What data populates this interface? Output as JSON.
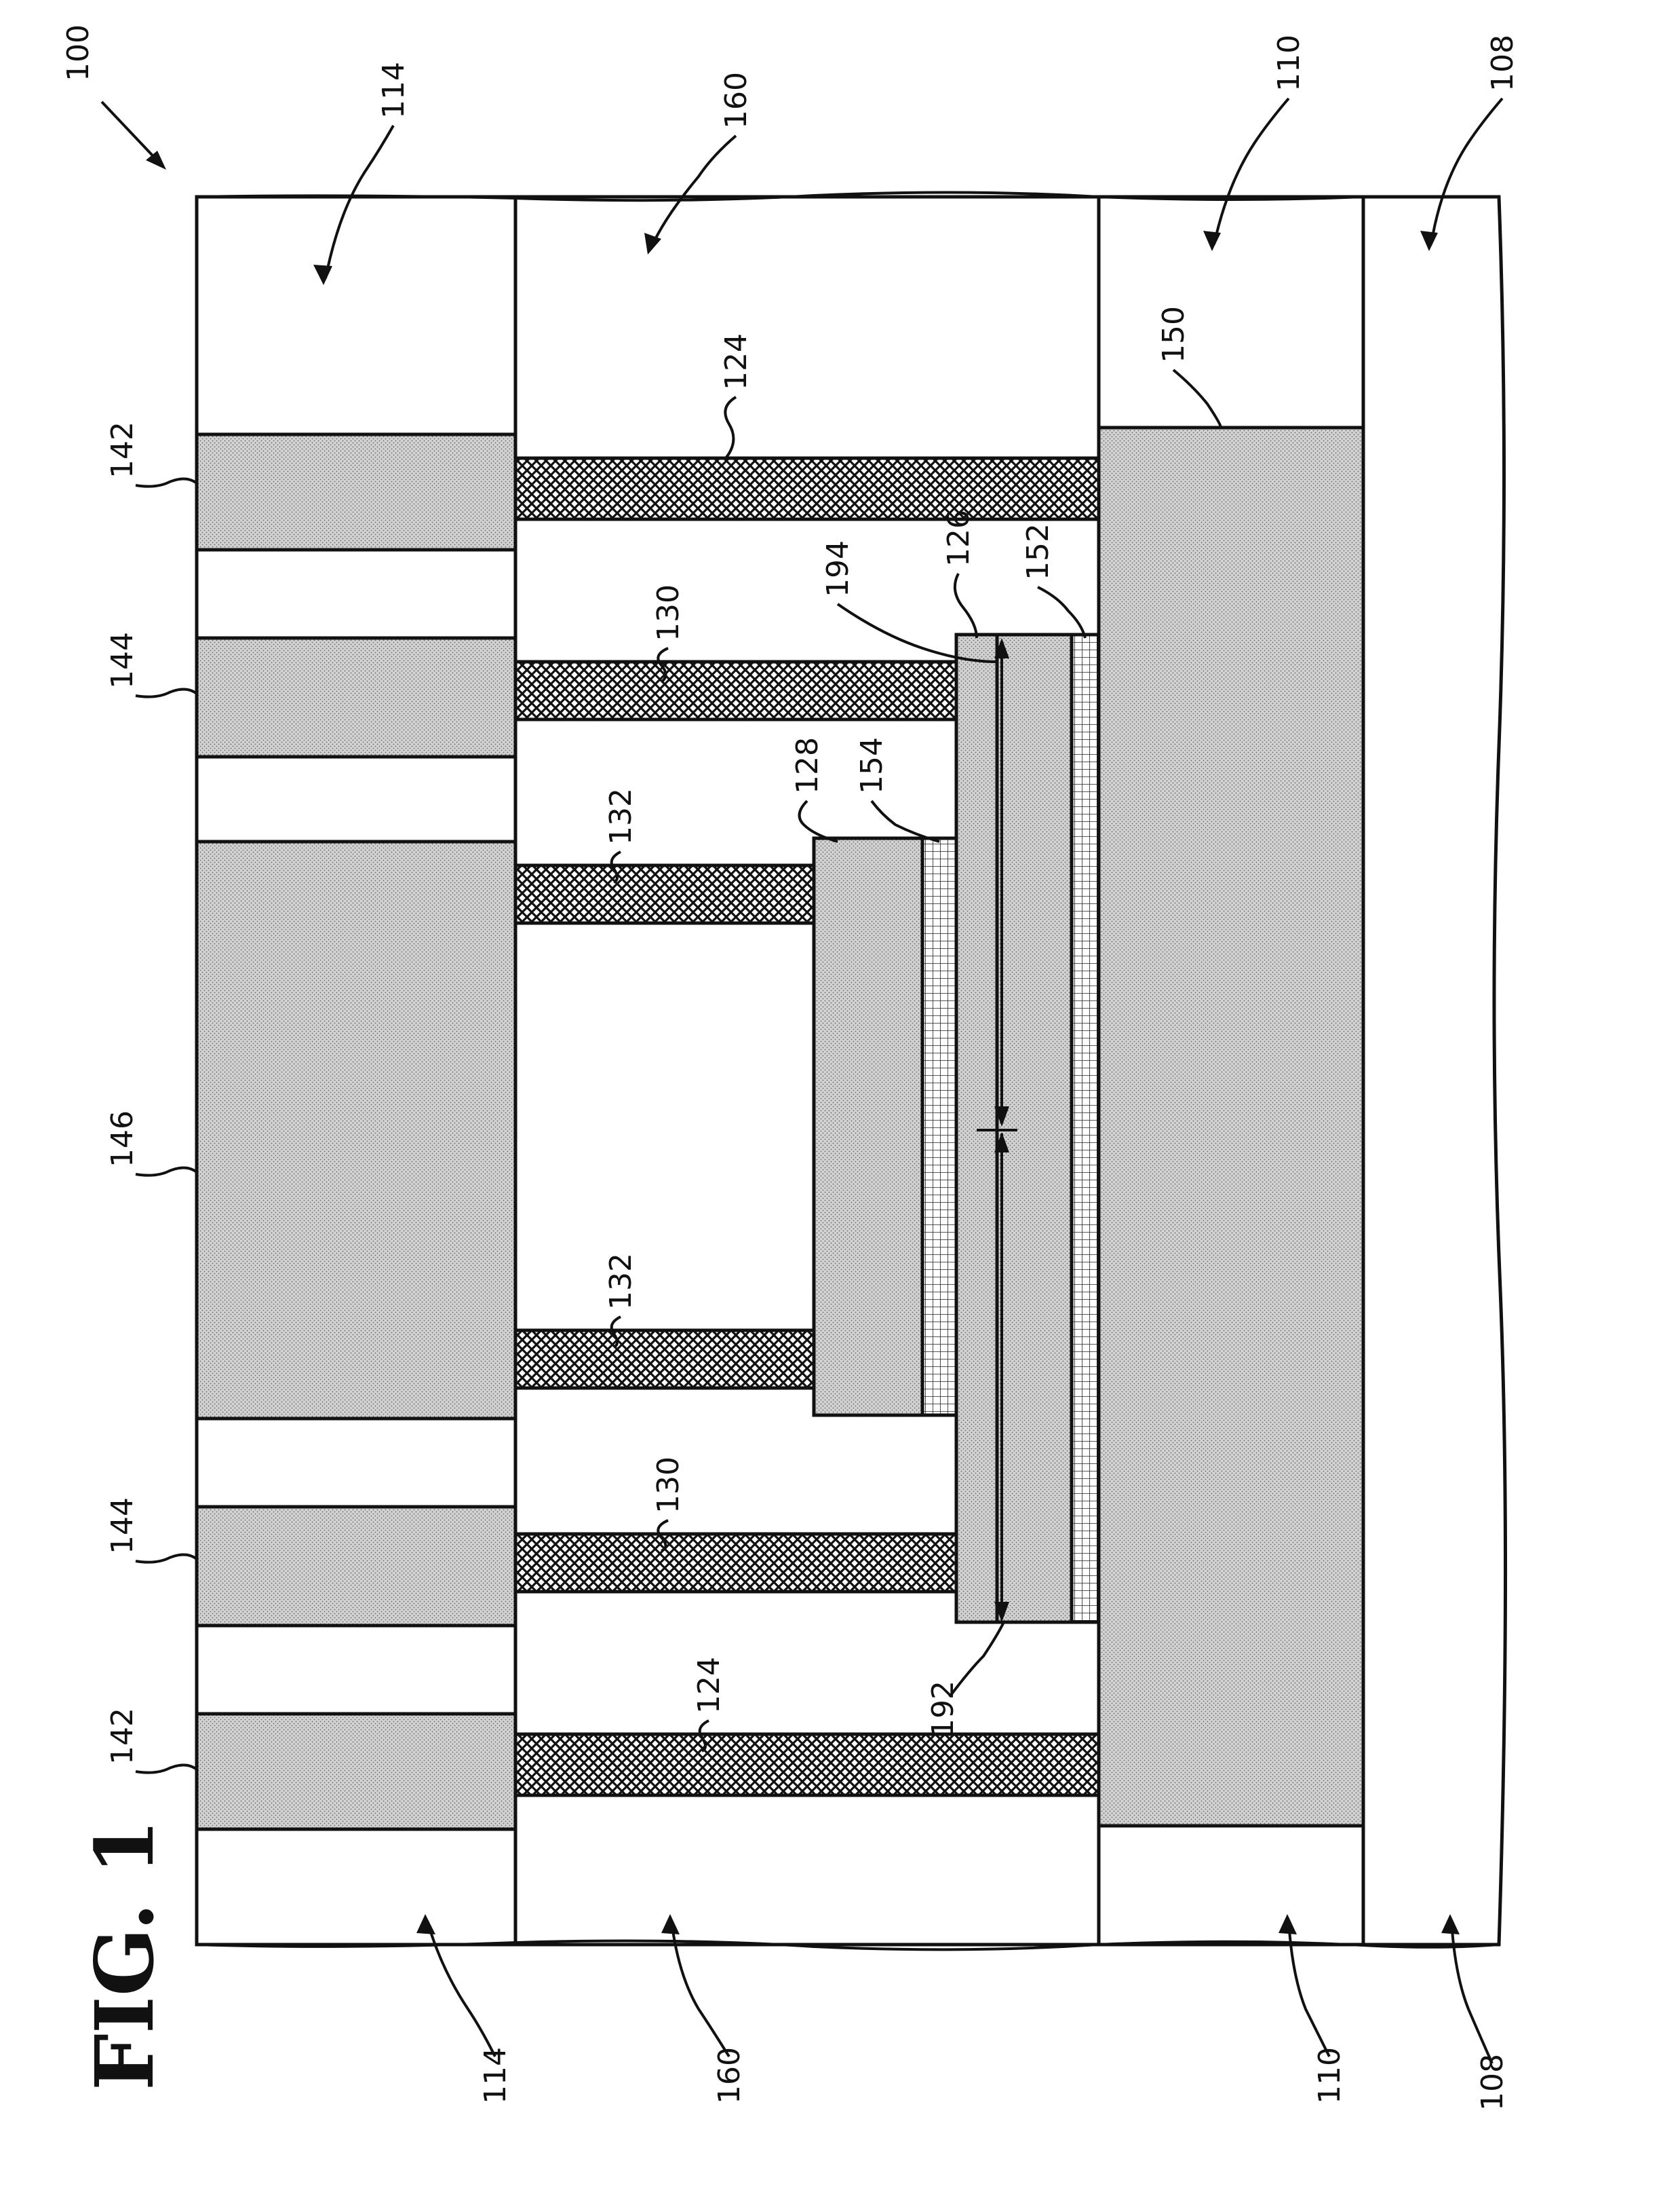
{
  "figure": {
    "title": "FIG. 1",
    "ref_main": "100"
  },
  "labels": {
    "l108": "108",
    "l110": "110",
    "l114": "114",
    "l124": "124",
    "l126": "126",
    "l128": "128",
    "l130": "130",
    "l132": "132",
    "l142": "142",
    "l144": "144",
    "l146": "146",
    "l150": "150",
    "l152": "152",
    "l154": "154",
    "l160": "160",
    "l192": "192",
    "l194": "194"
  },
  "colors": {
    "outline": "#111111",
    "background": "#ffffff",
    "stipple": "#c9c9c9",
    "hatch": "#111111"
  }
}
